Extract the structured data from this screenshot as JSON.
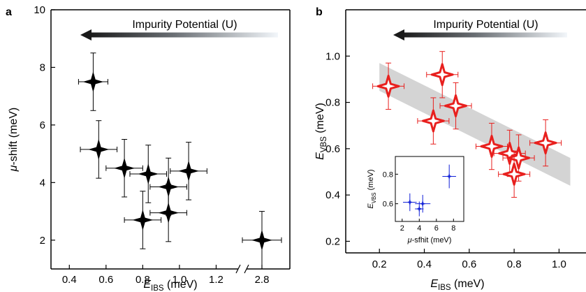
{
  "chart_data": [
    {
      "panel": "a",
      "type": "scatter",
      "title": "",
      "xlabel": {
        "main": "E",
        "sub": "IBS",
        "rest": " (meV)"
      },
      "ylabel": {
        "prefix": "μ",
        "rest": "-shift (meV)"
      },
      "xlim": [
        0.3,
        1.35
      ],
      "x_break": {
        "after": 1.3,
        "label_value": 2.8
      },
      "ylim": [
        1,
        10
      ],
      "xticks": [
        0.4,
        0.6,
        0.8,
        1.0,
        1.2
      ],
      "xtick_labels": [
        "0.4",
        "0.6",
        "0.8",
        "1.0",
        "1.2"
      ],
      "yticks": [
        2,
        4,
        6,
        8,
        10
      ],
      "ytick_labels": [
        "2",
        "4",
        "6",
        "8",
        "10"
      ],
      "arrow_label": "Impurity Potential (U)",
      "marker_color": "#000000",
      "points": [
        {
          "x": 0.53,
          "y": 7.5,
          "xerr": 0.08,
          "yerr": 1.0
        },
        {
          "x": 0.56,
          "y": 5.15,
          "xerr": 0.1,
          "yerr": 1.0
        },
        {
          "x": 0.7,
          "y": 4.5,
          "xerr": 0.1,
          "yerr": 1.0
        },
        {
          "x": 0.83,
          "y": 4.3,
          "xerr": 0.1,
          "yerr": 1.0
        },
        {
          "x": 0.94,
          "y": 3.85,
          "xerr": 0.1,
          "yerr": 1.0
        },
        {
          "x": 1.05,
          "y": 4.4,
          "xerr": 0.1,
          "yerr": 1.0
        },
        {
          "x": 0.8,
          "y": 2.7,
          "xerr": 0.1,
          "yerr": 1.0
        },
        {
          "x": 0.94,
          "y": 2.95,
          "xerr": 0.1,
          "yerr": 1.0
        },
        {
          "x": 2.8,
          "y": 2.0,
          "xerr": 0.1,
          "yerr": 1.0
        }
      ]
    },
    {
      "panel": "b",
      "type": "scatter",
      "title": "",
      "xlabel": {
        "main": "E",
        "sub": "IBS",
        "rest": " (meV)"
      },
      "ylabel": {
        "main": "E",
        "sub": "VBS",
        "rest": " (meV)"
      },
      "xlim": [
        0.05,
        1.12
      ],
      "ylim": [
        0.15,
        1.2
      ],
      "xticks": [
        0.2,
        0.4,
        0.6,
        0.8,
        1.0
      ],
      "xtick_labels": [
        "0.2",
        "0.4",
        "0.6",
        "0.8",
        "1.0"
      ],
      "yticks": [
        0.2,
        0.4,
        0.6,
        0.8,
        1.0
      ],
      "ytick_labels": [
        "0.2",
        "0.4",
        "0.6",
        "0.8",
        "1.0"
      ],
      "arrow_label": "Impurity Potential (U)",
      "marker_color": "#e8201e",
      "band_color": "#d4d4d4",
      "band": {
        "x": [
          0.2,
          1.05
        ],
        "y": [
          0.91,
          0.5
        ],
        "half_width": 0.06
      },
      "points": [
        {
          "x": 0.24,
          "y": 0.87,
          "xerr": 0.07,
          "yerr": 0.1
        },
        {
          "x": 0.48,
          "y": 0.92,
          "xerr": 0.07,
          "yerr": 0.1
        },
        {
          "x": 0.44,
          "y": 0.72,
          "xerr": 0.07,
          "yerr": 0.1
        },
        {
          "x": 0.54,
          "y": 0.785,
          "xerr": 0.07,
          "yerr": 0.1
        },
        {
          "x": 0.7,
          "y": 0.61,
          "xerr": 0.07,
          "yerr": 0.1
        },
        {
          "x": 0.78,
          "y": 0.58,
          "xerr": 0.07,
          "yerr": 0.1
        },
        {
          "x": 0.82,
          "y": 0.56,
          "xerr": 0.07,
          "yerr": 0.1
        },
        {
          "x": 0.8,
          "y": 0.49,
          "xerr": 0.07,
          "yerr": 0.1
        },
        {
          "x": 0.94,
          "y": 0.625,
          "xerr": 0.07,
          "yerr": 0.1
        }
      ]
    },
    {
      "panel": "b-inset",
      "type": "scatter",
      "title": "",
      "xlabel": {
        "prefix": "μ",
        "rest": "-sfhit (meV)"
      },
      "ylabel": {
        "main": "E",
        "sub": "VBS",
        "rest": " (meV)"
      },
      "xlim": [
        1.2,
        9.2
      ],
      "ylim": [
        0.48,
        0.92
      ],
      "xticks": [
        2,
        4,
        6,
        8
      ],
      "xtick_labels": [
        "2",
        "4",
        "6",
        "8"
      ],
      "yticks": [
        0.6,
        0.8
      ],
      "ytick_labels": [
        "0.6",
        "0.8"
      ],
      "marker_color": "#1020d8",
      "points": [
        {
          "x": 2.9,
          "y": 0.61,
          "xerr": 0.8,
          "yerr": 0.06
        },
        {
          "x": 4.0,
          "y": 0.565,
          "xerr": 0.5,
          "yerr": 0.05
        },
        {
          "x": 4.4,
          "y": 0.6,
          "xerr": 0.9,
          "yerr": 0.06
        },
        {
          "x": 7.5,
          "y": 0.785,
          "xerr": 0.8,
          "yerr": 0.08
        }
      ]
    }
  ],
  "panel_a_letter": "a",
  "panel_b_letter": "b"
}
